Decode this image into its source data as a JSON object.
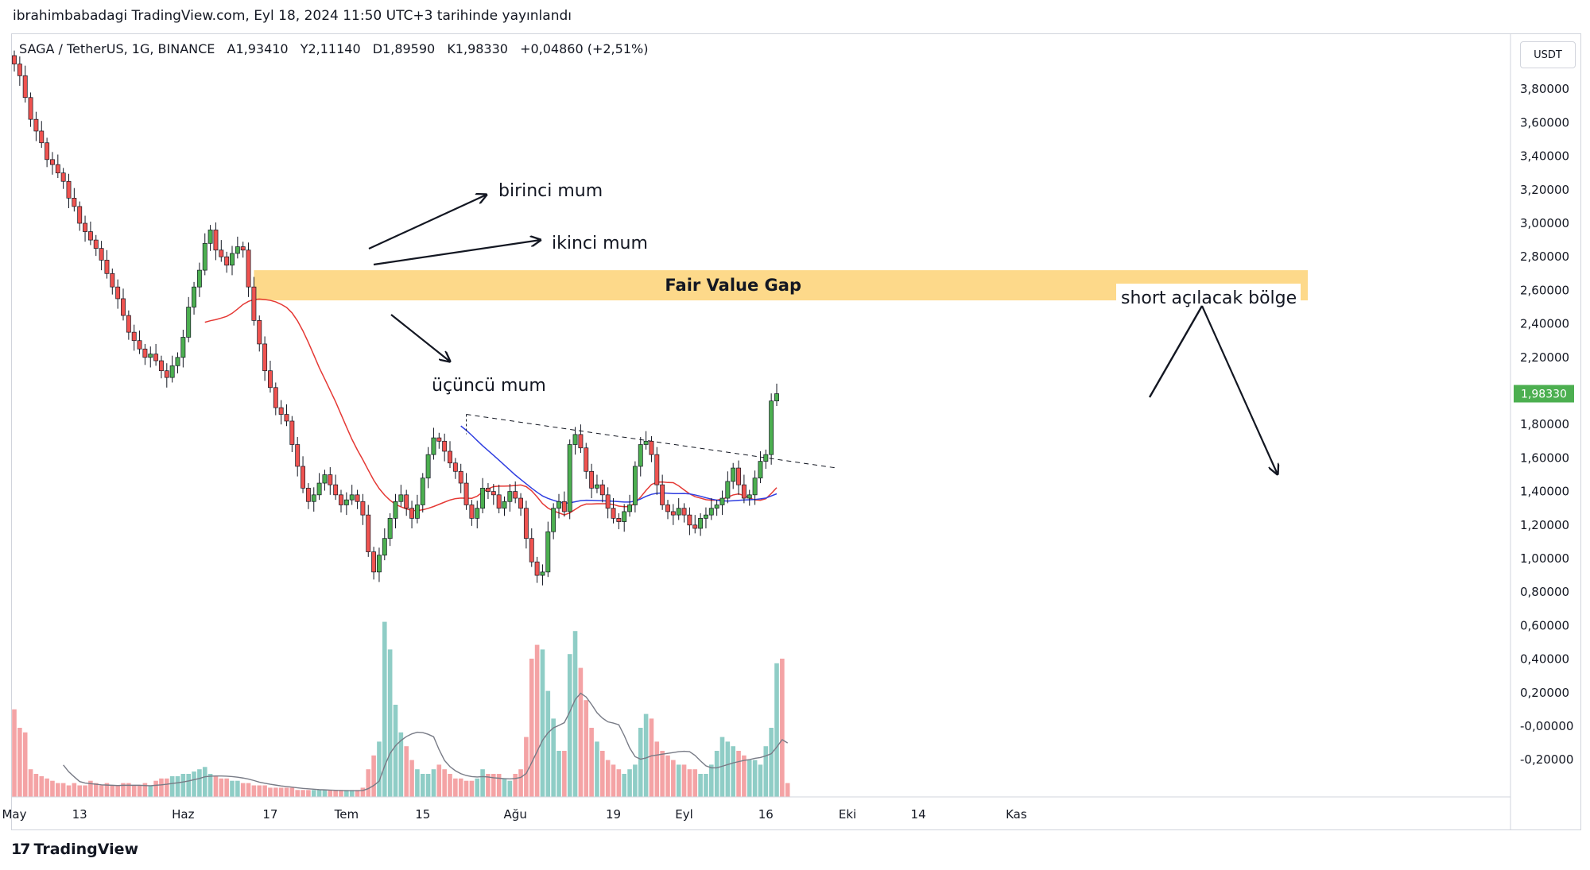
{
  "header": {
    "text": "ibrahimbabadagi TradingView.com, Eyl 18, 2024 11:50 UTC+3 tarihinde yayınlandı"
  },
  "legend": {
    "symbol": "SAGA / TetherUS, 1G, BINANCE",
    "open": "A1,93410",
    "high": "Y2,11140",
    "low": "D1,89590",
    "close": "K1,98330",
    "change": "+0,04860 (+2,51%)"
  },
  "currency_button": "USDT",
  "footer": {
    "brand": "TradingView"
  },
  "colors": {
    "up": "#4caf50",
    "down": "#ef5350",
    "vol_up": "#8fcdc6",
    "vol_down": "#f4a3a5",
    "ma_red": "#e53935",
    "ma_blue": "#2f3ee0",
    "fvg": "#fdd98a",
    "price_label": "#4caf50"
  },
  "chart_data": {
    "type": "candlestick",
    "y_ticks": [
      "3,80000",
      "3,60000",
      "3,40000",
      "3,20000",
      "3,00000",
      "2,80000",
      "2,60000",
      "2,40000",
      "2,20000",
      "2,00000",
      "1,80000",
      "1,60000",
      "1,40000",
      "1,20000",
      "1,00000",
      "0,80000",
      "0,60000",
      "0,40000",
      "0,20000",
      "-0,00000",
      "-0,20000"
    ],
    "x_ticks": [
      {
        "label": "May",
        "day": 0
      },
      {
        "label": "13",
        "day": 12
      },
      {
        "label": "Haz",
        "day": 31
      },
      {
        "label": "17",
        "day": 47
      },
      {
        "label": "Tem",
        "day": 61
      },
      {
        "label": "15",
        "day": 75
      },
      {
        "label": "Ağu",
        "day": 92
      },
      {
        "label": "19",
        "day": 110
      },
      {
        "label": "Eyl",
        "day": 123
      },
      {
        "label": "16",
        "day": 138
      },
      {
        "label": "Eki",
        "day": 153
      },
      {
        "label": "14",
        "day": 166
      },
      {
        "label": "Kas",
        "day": 184
      }
    ],
    "last_price_label": "1,98330",
    "closes": [
      3.95,
      3.88,
      3.75,
      3.62,
      3.55,
      3.48,
      3.38,
      3.35,
      3.3,
      3.25,
      3.15,
      3.1,
      3.0,
      2.95,
      2.9,
      2.85,
      2.78,
      2.7,
      2.62,
      2.55,
      2.45,
      2.35,
      2.3,
      2.25,
      2.2,
      2.22,
      2.18,
      2.12,
      2.08,
      2.15,
      2.2,
      2.32,
      2.5,
      2.62,
      2.72,
      2.88,
      2.96,
      2.84,
      2.8,
      2.75,
      2.82,
      2.86,
      2.84,
      2.62,
      2.42,
      2.28,
      2.12,
      2.02,
      1.9,
      1.86,
      1.82,
      1.68,
      1.55,
      1.42,
      1.34,
      1.38,
      1.45,
      1.5,
      1.44,
      1.38,
      1.32,
      1.35,
      1.38,
      1.34,
      1.26,
      1.04,
      0.92,
      1.02,
      1.12,
      1.24,
      1.34,
      1.38,
      1.3,
      1.24,
      1.32,
      1.48,
      1.62,
      1.72,
      1.7,
      1.64,
      1.57,
      1.52,
      1.45,
      1.32,
      1.24,
      1.3,
      1.42,
      1.4,
      1.38,
      1.3,
      1.34,
      1.4,
      1.36,
      1.3,
      1.12,
      0.98,
      0.9,
      0.92,
      1.16,
      1.3,
      1.34,
      1.28,
      1.68,
      1.74,
      1.66,
      1.52,
      1.42,
      1.44,
      1.38,
      1.3,
      1.24,
      1.22,
      1.28,
      1.32,
      1.55,
      1.68,
      1.7,
      1.62,
      1.44,
      1.32,
      1.28,
      1.26,
      1.3,
      1.26,
      1.2,
      1.18,
      1.24,
      1.26,
      1.3,
      1.32,
      1.36,
      1.46,
      1.54,
      1.44,
      1.36,
      1.38,
      1.48,
      1.58,
      1.62,
      1.94,
      1.9833
    ],
    "volumes": [
      0.38,
      0.3,
      0.28,
      0.12,
      0.1,
      0.09,
      0.08,
      0.07,
      0.06,
      0.06,
      0.05,
      0.06,
      0.05,
      0.05,
      0.07,
      0.06,
      0.05,
      0.06,
      0.05,
      0.05,
      0.06,
      0.06,
      0.05,
      0.05,
      0.06,
      0.05,
      0.07,
      0.08,
      0.08,
      0.09,
      0.09,
      0.1,
      0.1,
      0.11,
      0.12,
      0.13,
      0.1,
      0.09,
      0.08,
      0.08,
      0.07,
      0.07,
      0.06,
      0.06,
      0.05,
      0.05,
      0.05,
      0.04,
      0.04,
      0.04,
      0.04,
      0.04,
      0.03,
      0.03,
      0.03,
      0.03,
      0.03,
      0.03,
      0.03,
      0.03,
      0.03,
      0.03,
      0.03,
      0.03,
      0.04,
      0.12,
      0.18,
      0.24,
      0.76,
      0.64,
      0.4,
      0.28,
      0.22,
      0.16,
      0.12,
      0.1,
      0.1,
      0.12,
      0.14,
      0.12,
      0.1,
      0.08,
      0.08,
      0.07,
      0.07,
      0.08,
      0.12,
      0.1,
      0.1,
      0.1,
      0.08,
      0.07,
      0.1,
      0.12,
      0.26,
      0.6,
      0.66,
      0.64,
      0.46,
      0.34,
      0.2,
      0.2,
      0.62,
      0.72,
      0.56,
      0.42,
      0.3,
      0.24,
      0.2,
      0.16,
      0.14,
      0.12,
      0.1,
      0.12,
      0.14,
      0.3,
      0.36,
      0.34,
      0.24,
      0.2,
      0.18,
      0.16,
      0.14,
      0.14,
      0.12,
      0.12,
      0.1,
      0.1,
      0.14,
      0.2,
      0.26,
      0.24,
      0.22,
      0.2,
      0.18,
      0.16,
      0.16,
      0.14,
      0.22,
      0.3,
      0.58,
      0.6,
      0.06
    ],
    "ma_red_start_day": 35,
    "ma_blue_start_day": 82,
    "fair_value_gap": {
      "low": 2.54,
      "high": 2.72,
      "start_day": 44,
      "label": "Fair Value Gap"
    },
    "trendline": {
      "start": {
        "day": 83,
        "price": 1.86
      },
      "end": {
        "day": 151,
        "price": 1.54
      }
    },
    "annotations": [
      {
        "text": "birinci mum"
      },
      {
        "text": "ikinci mum"
      },
      {
        "text": "üçüncü mum"
      },
      {
        "text": "short açılacak bölge"
      }
    ]
  }
}
